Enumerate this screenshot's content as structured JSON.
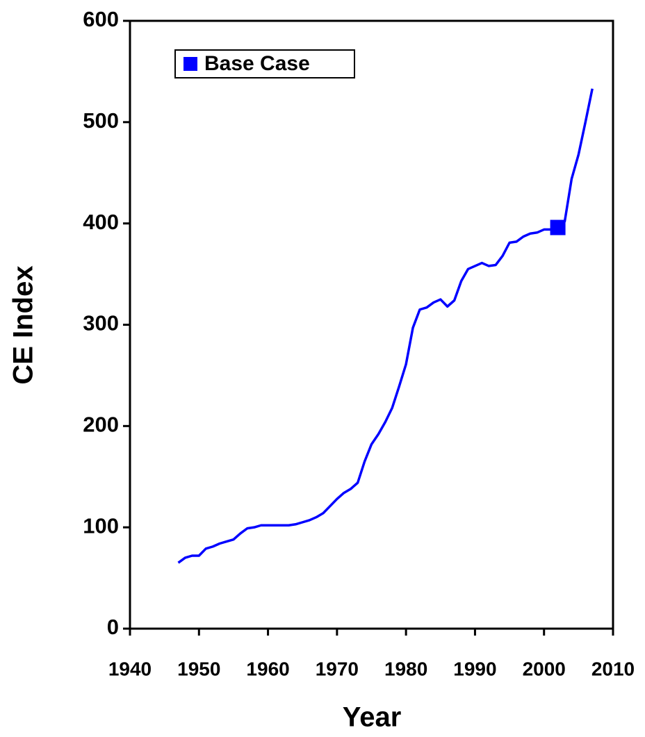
{
  "chart_data": {
    "type": "line",
    "xlabel": "Year",
    "ylabel": "CE Index",
    "x": [
      1947,
      1948,
      1949,
      1950,
      1951,
      1952,
      1953,
      1954,
      1955,
      1956,
      1957,
      1958,
      1959,
      1960,
      1961,
      1962,
      1963,
      1964,
      1965,
      1966,
      1967,
      1968,
      1969,
      1970,
      1971,
      1972,
      1973,
      1974,
      1975,
      1976,
      1977,
      1978,
      1979,
      1980,
      1981,
      1982,
      1983,
      1984,
      1985,
      1986,
      1987,
      1988,
      1989,
      1990,
      1991,
      1992,
      1993,
      1994,
      1995,
      1996,
      1997,
      1998,
      1999,
      2000,
      2001,
      2002,
      2003,
      2004,
      2005,
      2006,
      2007
    ],
    "series": [
      {
        "color": "#0000ff",
        "values": [
          65,
          70,
          72,
          72,
          79,
          81,
          84,
          86,
          88,
          94,
          99,
          100,
          102,
          102,
          102,
          102,
          102,
          103,
          105,
          107,
          110,
          114,
          121,
          128,
          134,
          138,
          144,
          165,
          182,
          192,
          204,
          218,
          239,
          261,
          297,
          315,
          317,
          322,
          325,
          318,
          324,
          343,
          355,
          358,
          361,
          358,
          359,
          368,
          381,
          382,
          387,
          390,
          391,
          394,
          394,
          396,
          402,
          444,
          468,
          500,
          533
        ]
      },
      {
        "name": "Base Case",
        "color": "#0000ff",
        "marker": "square",
        "x": [
          2002
        ],
        "values": [
          396
        ]
      }
    ],
    "xlim": [
      1940,
      2010
    ],
    "xticks": [
      1940,
      1950,
      1960,
      1970,
      1980,
      1990,
      2000,
      2010
    ],
    "ylim": [
      0,
      600
    ],
    "yticks": [
      0,
      100,
      200,
      300,
      400,
      500,
      600
    ],
    "legend": "upper-left"
  }
}
